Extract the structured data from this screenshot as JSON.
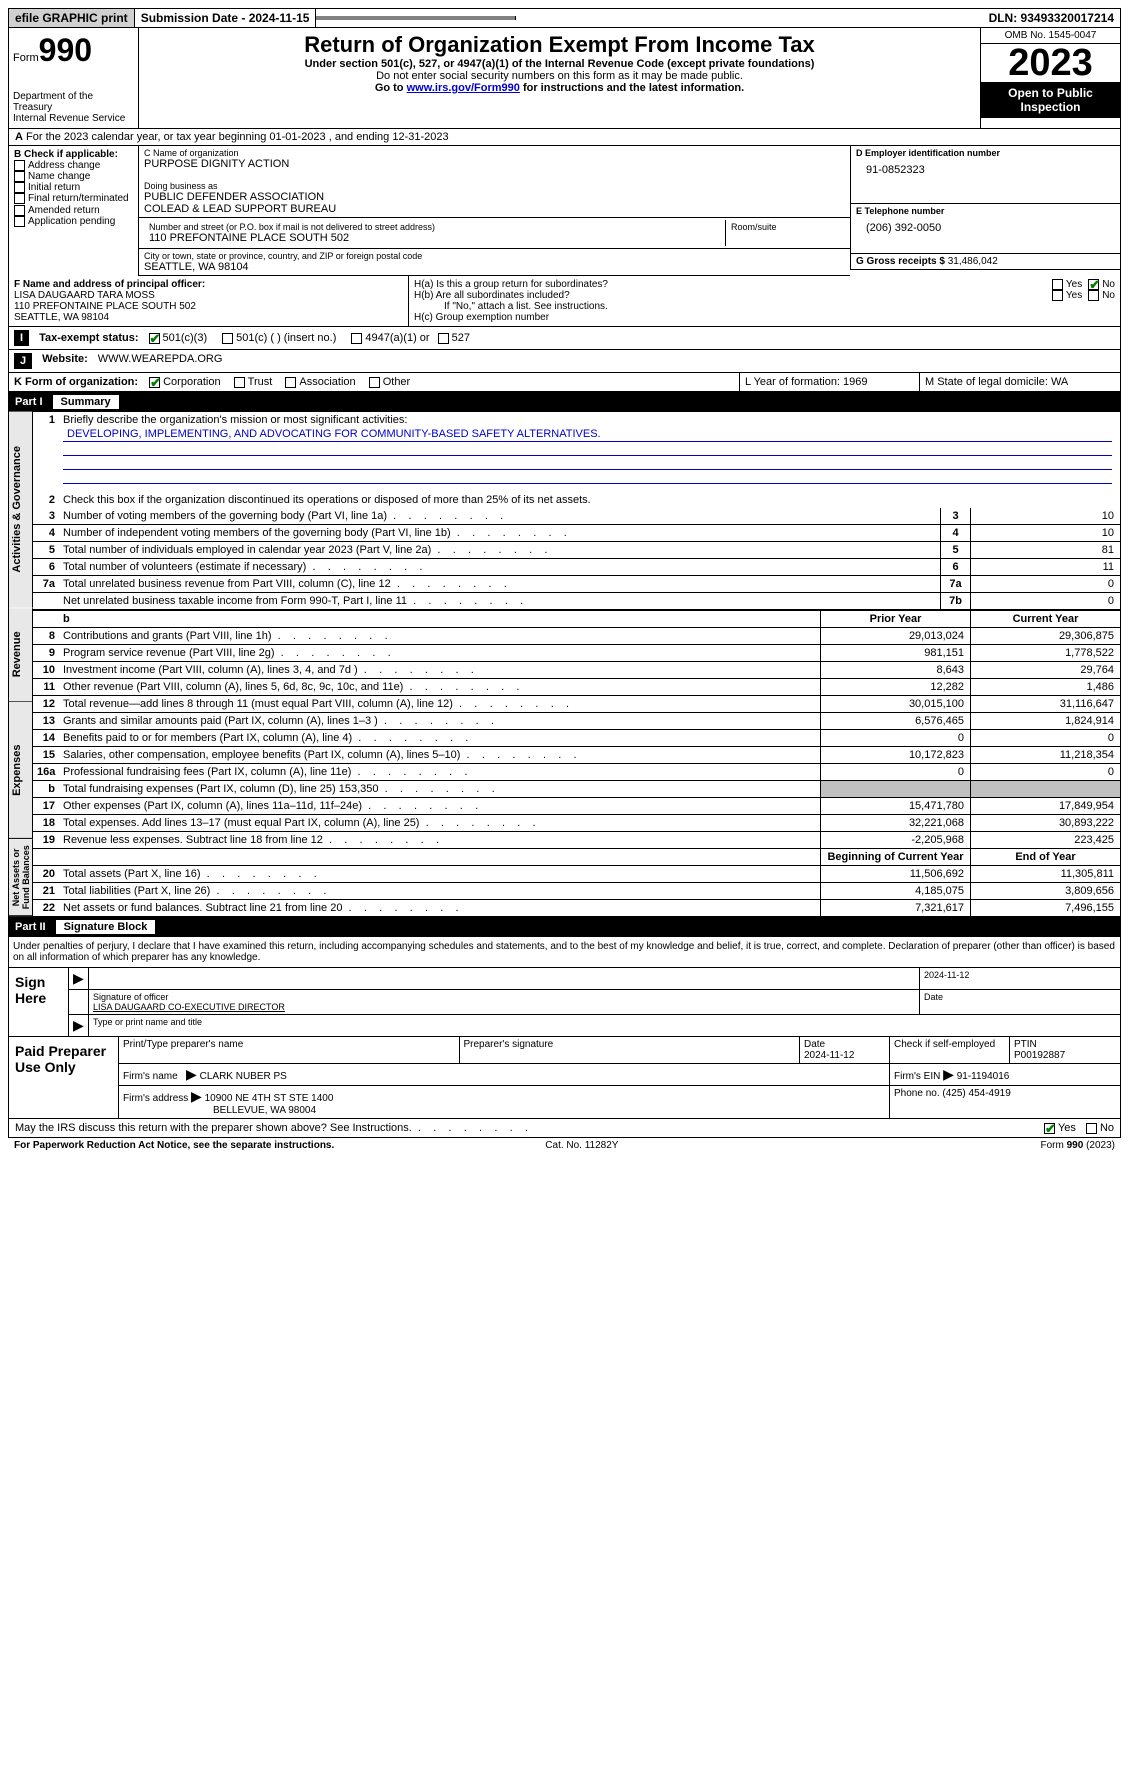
{
  "topbar": {
    "efile": "efile GRAPHIC print",
    "submission": "Submission Date - 2024-11-15",
    "dln": "DLN: 93493320017214"
  },
  "header": {
    "form_label": "Form",
    "form_num": "990",
    "dept1": "Department of the Treasury",
    "dept2": "Internal Revenue Service",
    "title": "Return of Organization Exempt From Income Tax",
    "sub1": "Under section 501(c), 527, or 4947(a)(1) of the Internal Revenue Code (except private foundations)",
    "sub2": "Do not enter social security numbers on this form as it may be made public.",
    "goto_pre": "Go to ",
    "goto_link": "www.irs.gov/Form990",
    "goto_post": " for instructions and the latest information.",
    "omb": "OMB No. 1545-0047",
    "year": "2023",
    "open": "Open to Public Inspection"
  },
  "rowA": "For the 2023 calendar year, or tax year beginning 01-01-2023   , and ending 12-31-2023",
  "boxB": {
    "label": "B Check if applicable:",
    "items": [
      "Address change",
      "Name change",
      "Initial return",
      "Final return/terminated",
      "Amended return",
      "Application pending"
    ]
  },
  "boxC": {
    "name_lbl": "C Name of organization",
    "name": "PURPOSE DIGNITY ACTION",
    "dba_lbl": "Doing business as",
    "dba1": "PUBLIC DEFENDER ASSOCIATION",
    "dba2": "COLEAD & LEAD SUPPORT BUREAU",
    "addr_lbl": "Number and street (or P.O. box if mail is not delivered to street address)",
    "addr": "110 PREFONTAINE PLACE SOUTH 502",
    "room_lbl": "Room/suite",
    "city_lbl": "City or town, state or province, country, and ZIP or foreign postal code",
    "city": "SEATTLE, WA   98104"
  },
  "boxD": {
    "lbl": "D Employer identification number",
    "val": "91-0852323"
  },
  "boxE": {
    "lbl": "E Telephone number",
    "val": "(206) 392-0050"
  },
  "boxG": {
    "lbl": "G Gross receipts $",
    "val": "31,486,042"
  },
  "boxF": {
    "lbl": "F  Name and address of principal officer:",
    "name": "LISA DAUGAARD TARA MOSS",
    "addr": "110 PREFONTAINE PLACE SOUTH 502",
    "city": "SEATTLE, WA   98104"
  },
  "boxH": {
    "a": "H(a)  Is this a group return for subordinates?",
    "b": "H(b)  Are all subordinates included?",
    "b2": "If \"No,\" attach a list. See instructions.",
    "c": "H(c)  Group exemption number"
  },
  "rowI": {
    "lbl": "Tax-exempt status:",
    "opts": [
      "501(c)(3)",
      "501(c) (  ) (insert no.)",
      "4947(a)(1) or",
      "527"
    ]
  },
  "rowJ": {
    "lbl": "Website:",
    "val": "WWW.WEAREPDA.ORG"
  },
  "rowK": {
    "lbl": "K Form of organization:",
    "opts": [
      "Corporation",
      "Trust",
      "Association",
      "Other"
    ],
    "L": "L Year of formation: 1969",
    "M": "M State of legal domicile: WA"
  },
  "part1": {
    "label": "Part I",
    "title": "Summary"
  },
  "summary": {
    "tabs": [
      "Activities & Governance",
      "Revenue",
      "Expenses",
      "Net Assets or Fund Balances"
    ],
    "line1": "Briefly describe the organization's mission or most significant activities:",
    "mission": "DEVELOPING, IMPLEMENTING, AND ADVOCATING FOR COMMUNITY-BASED SAFETY ALTERNATIVES.",
    "line2": "Check this box        if the organization discontinued its operations or disposed of more than 25% of its net assets.",
    "gov_lines": [
      {
        "n": "3",
        "d": "Number of voting members of the governing body (Part VI, line 1a)",
        "box": "3",
        "v": "10"
      },
      {
        "n": "4",
        "d": "Number of independent voting members of the governing body (Part VI, line 1b)",
        "box": "4",
        "v": "10"
      },
      {
        "n": "5",
        "d": "Total number of individuals employed in calendar year 2023 (Part V, line 2a)",
        "box": "5",
        "v": "81"
      },
      {
        "n": "6",
        "d": "Total number of volunteers (estimate if necessary)",
        "box": "6",
        "v": "11"
      },
      {
        "n": "7a",
        "d": "Total unrelated business revenue from Part VIII, column (C), line 12",
        "box": "7a",
        "v": "0"
      },
      {
        "n": "",
        "d": "Net unrelated business taxable income from Form 990-T, Part I, line 11",
        "box": "7b",
        "v": "0"
      }
    ],
    "col_hdrs": {
      "prior": "Prior Year",
      "current": "Current Year"
    },
    "rev_lines": [
      {
        "n": "8",
        "d": "Contributions and grants (Part VIII, line 1h)",
        "p": "29,013,024",
        "c": "29,306,875"
      },
      {
        "n": "9",
        "d": "Program service revenue (Part VIII, line 2g)",
        "p": "981,151",
        "c": "1,778,522"
      },
      {
        "n": "10",
        "d": "Investment income (Part VIII, column (A), lines 3, 4, and 7d )",
        "p": "8,643",
        "c": "29,764"
      },
      {
        "n": "11",
        "d": "Other revenue (Part VIII, column (A), lines 5, 6d, 8c, 9c, 10c, and 11e)",
        "p": "12,282",
        "c": "1,486"
      },
      {
        "n": "12",
        "d": "Total revenue—add lines 8 through 11 (must equal Part VIII, column (A), line 12)",
        "p": "30,015,100",
        "c": "31,116,647"
      }
    ],
    "exp_lines": [
      {
        "n": "13",
        "d": "Grants and similar amounts paid (Part IX, column (A), lines 1–3 )",
        "p": "6,576,465",
        "c": "1,824,914"
      },
      {
        "n": "14",
        "d": "Benefits paid to or for members (Part IX, column (A), line 4)",
        "p": "0",
        "c": "0"
      },
      {
        "n": "15",
        "d": "Salaries, other compensation, employee benefits (Part IX, column (A), lines 5–10)",
        "p": "10,172,823",
        "c": "11,218,354"
      },
      {
        "n": "16a",
        "d": "Professional fundraising fees (Part IX, column (A), line 11e)",
        "p": "0",
        "c": "0"
      },
      {
        "n": "b",
        "d": "Total fundraising expenses (Part IX, column (D), line 25) 153,350",
        "p": "",
        "c": "",
        "shade": true
      },
      {
        "n": "17",
        "d": "Other expenses (Part IX, column (A), lines 11a–11d, 11f–24e)",
        "p": "15,471,780",
        "c": "17,849,954"
      },
      {
        "n": "18",
        "d": "Total expenses. Add lines 13–17 (must equal Part IX, column (A), line 25)",
        "p": "32,221,068",
        "c": "30,893,222"
      },
      {
        "n": "19",
        "d": "Revenue less expenses. Subtract line 18 from line 12",
        "p": "-2,205,968",
        "c": "223,425"
      }
    ],
    "na_hdrs": {
      "beg": "Beginning of Current Year",
      "end": "End of Year"
    },
    "na_lines": [
      {
        "n": "20",
        "d": "Total assets (Part X, line 16)",
        "p": "11,506,692",
        "c": "11,305,811"
      },
      {
        "n": "21",
        "d": "Total liabilities (Part X, line 26)",
        "p": "4,185,075",
        "c": "3,809,656"
      },
      {
        "n": "22",
        "d": "Net assets or fund balances. Subtract line 21 from line 20",
        "p": "7,321,617",
        "c": "7,496,155"
      }
    ]
  },
  "part2": {
    "label": "Part II",
    "title": "Signature Block"
  },
  "sig": {
    "decl": "Under penalties of perjury, I declare that I have examined this return, including accompanying schedules and statements, and to the best of my knowledge and belief, it is true, correct, and complete. Declaration of preparer (other than officer) is based on all information of which preparer has any knowledge.",
    "sign_here": "Sign Here",
    "date": "2024-11-12",
    "sig_officer_lbl": "Signature of officer",
    "officer": "LISA DAUGAARD  CO-EXECUTIVE DIRECTOR",
    "type_lbl": "Type or print name and title",
    "date_lbl": "Date"
  },
  "prep": {
    "label": "Paid Preparer Use Only",
    "name_lbl": "Print/Type preparer's name",
    "sig_lbl": "Preparer's signature",
    "date_lbl": "Date",
    "date": "2024-11-12",
    "self_lbl": "Check        if self-employed",
    "ptin_lbl": "PTIN",
    "ptin": "P00192887",
    "firm_name_lbl": "Firm's name",
    "firm_name": "CLARK NUBER PS",
    "firm_ein_lbl": "Firm's EIN",
    "firm_ein": "91-1194016",
    "firm_addr_lbl": "Firm's address",
    "firm_addr1": "10900 NE 4TH ST STE 1400",
    "firm_addr2": "BELLEVUE, WA   98004",
    "phone_lbl": "Phone no.",
    "phone": "(425) 454-4919"
  },
  "discuss": "May the IRS discuss this return with the preparer shown above? See Instructions.",
  "footer": {
    "left": "For Paperwork Reduction Act Notice, see the separate instructions.",
    "mid": "Cat. No. 11282Y",
    "right_pre": "Form ",
    "right_form": "990",
    "right_post": " (2023)"
  },
  "yn": {
    "yes": "Yes",
    "no": "No"
  }
}
